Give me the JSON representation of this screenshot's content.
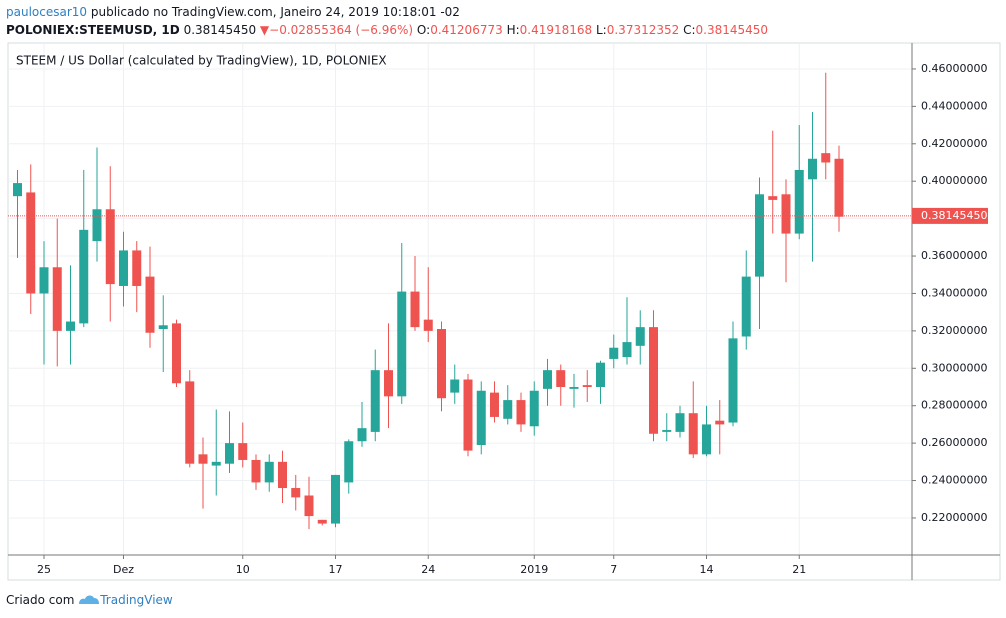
{
  "header": {
    "user": "paulocesar10",
    "published": "publicado no TradingView.com, Janeiro 24, 2019 10:18:01 -02",
    "symbol": "POLONIEX:STEEMUSD, 1D",
    "price": "0.38145450",
    "change": "−0.02855364 (−6.96%)",
    "open_label": "O:",
    "open": "0.41206773",
    "high_label": "H:",
    "high": "0.41918168",
    "low_label": "L:",
    "low": "0.37312352",
    "close_label": "C:",
    "close": "0.38145450"
  },
  "footer": {
    "text": "Criado com",
    "brand": "TradingView"
  },
  "chart_data": {
    "type": "candlestick",
    "title": "STEEM / US Dollar (calculated by TradingView), 1D, POLONIEX",
    "up_color": "#26a69a",
    "down_color": "#ef5350",
    "grid": true,
    "last_price": {
      "value": 0.3814545,
      "label": "0.38145450"
    },
    "ylim": [
      0.2002,
      0.4712
    ],
    "yticks": [
      {
        "value": 0.22,
        "label": "0.22000000"
      },
      {
        "value": 0.24,
        "label": "0.24000000"
      },
      {
        "value": 0.26,
        "label": "0.26000000"
      },
      {
        "value": 0.28,
        "label": "0.28000000"
      },
      {
        "value": 0.3,
        "label": "0.30000000"
      },
      {
        "value": 0.32,
        "label": "0.32000000"
      },
      {
        "value": 0.34,
        "label": "0.34000000"
      },
      {
        "value": 0.36,
        "label": "0.36000000"
      },
      {
        "value": 0.38,
        "label": "0.38000000"
      },
      {
        "value": 0.4,
        "label": "0.40000000"
      },
      {
        "value": 0.42,
        "label": "0.42000000"
      },
      {
        "value": 0.44,
        "label": "0.44000000"
      },
      {
        "value": 0.46,
        "label": "0.46000000"
      }
    ],
    "categories": [
      null,
      null,
      "25",
      null,
      null,
      null,
      null,
      null,
      "Dez",
      null,
      null,
      null,
      null,
      null,
      null,
      null,
      null,
      "10",
      null,
      null,
      null,
      null,
      null,
      null,
      "17",
      null,
      null,
      null,
      null,
      null,
      null,
      "24",
      null,
      null,
      null,
      null,
      null,
      null,
      null,
      "2019",
      null,
      null,
      null,
      null,
      null,
      "7",
      null,
      null,
      null,
      null,
      null,
      null,
      "14",
      null,
      null,
      null,
      null,
      null,
      null,
      "21",
      null,
      null,
      null
    ],
    "open": [
      0.392,
      0.394,
      0.34,
      0.354,
      0.32,
      0.324,
      0.368,
      0.385,
      0.344,
      0.363,
      0.349,
      0.321,
      0.324,
      0.293,
      0.254,
      0.248,
      0.249,
      0.26,
      0.251,
      0.239,
      0.25,
      0.236,
      0.232,
      0.219,
      0.217,
      0.239,
      0.261,
      0.266,
      0.299,
      0.285,
      0.341,
      0.326,
      0.321,
      0.287,
      0.294,
      0.259,
      0.287,
      0.273,
      0.283,
      0.269,
      0.289,
      0.299,
      0.289,
      0.291,
      0.29,
      0.305,
      0.306,
      0.312,
      0.322,
      0.266,
      0.266,
      0.276,
      0.254,
      0.272,
      0.271,
      0.317,
      0.349,
      0.392,
      0.393,
      0.372,
      0.401,
      0.415,
      0.412
    ],
    "high": [
      0.406,
      0.409,
      0.368,
      0.38,
      0.355,
      0.406,
      0.418,
      0.408,
      0.373,
      0.368,
      0.365,
      0.339,
      0.326,
      0.299,
      0.263,
      0.278,
      0.277,
      0.271,
      0.254,
      0.254,
      0.256,
      0.243,
      0.242,
      0.219,
      0.243,
      0.262,
      0.282,
      0.31,
      0.324,
      0.367,
      0.36,
      0.354,
      0.325,
      0.302,
      0.297,
      0.293,
      0.293,
      0.291,
      0.287,
      0.293,
      0.305,
      0.302,
      0.297,
      0.299,
      0.304,
      0.318,
      0.338,
      0.331,
      0.331,
      0.276,
      0.28,
      0.293,
      0.28,
      0.283,
      0.325,
      0.363,
      0.402,
      0.427,
      0.401,
      0.43,
      0.437,
      0.458,
      0.419
    ],
    "low": [
      0.359,
      0.329,
      0.302,
      0.301,
      0.302,
      0.322,
      0.357,
      0.325,
      0.333,
      0.33,
      0.311,
      0.298,
      0.29,
      0.247,
      0.225,
      0.232,
      0.244,
      0.247,
      0.235,
      0.234,
      0.228,
      0.224,
      0.214,
      0.216,
      0.215,
      0.233,
      0.258,
      0.261,
      0.268,
      0.281,
      0.32,
      0.314,
      0.277,
      0.281,
      0.253,
      0.254,
      0.271,
      0.27,
      0.266,
      0.264,
      0.28,
      0.28,
      0.279,
      0.282,
      0.281,
      0.3,
      0.302,
      0.302,
      0.261,
      0.261,
      0.263,
      0.252,
      0.253,
      0.254,
      0.269,
      0.31,
      0.321,
      0.372,
      0.346,
      0.369,
      0.357,
      0.401,
      0.373
    ],
    "close": [
      0.399,
      0.34,
      0.354,
      0.32,
      0.325,
      0.374,
      0.385,
      0.345,
      0.363,
      0.344,
      0.319,
      0.323,
      0.292,
      0.249,
      0.249,
      0.25,
      0.26,
      0.251,
      0.239,
      0.25,
      0.236,
      0.231,
      0.221,
      0.217,
      0.243,
      0.261,
      0.268,
      0.299,
      0.285,
      0.341,
      0.322,
      0.32,
      0.284,
      0.294,
      0.256,
      0.288,
      0.274,
      0.283,
      0.27,
      0.288,
      0.299,
      0.29,
      0.29,
      0.29,
      0.303,
      0.311,
      0.314,
      0.322,
      0.265,
      0.267,
      0.276,
      0.254,
      0.27,
      0.27,
      0.316,
      0.349,
      0.393,
      0.39,
      0.372,
      0.406,
      0.412,
      0.41,
      0.381
    ]
  }
}
